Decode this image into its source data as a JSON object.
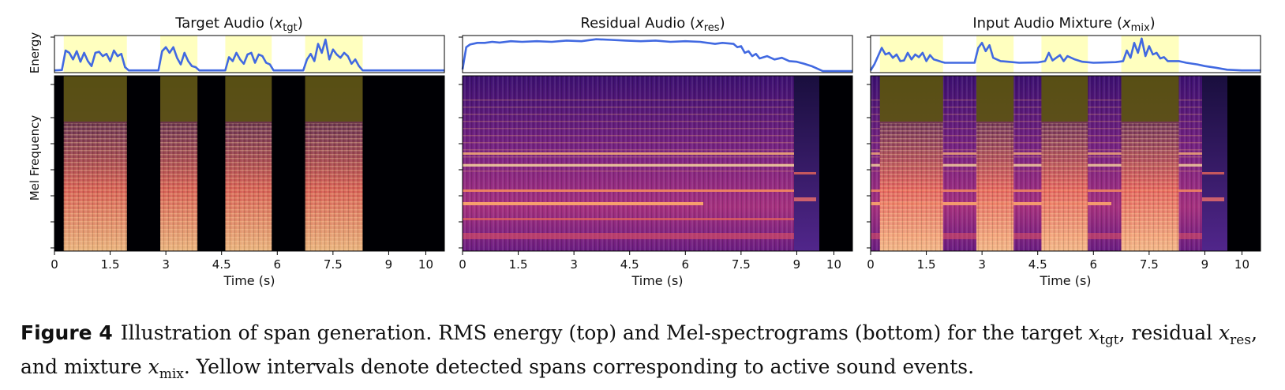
{
  "chart_data": [
    {
      "type": "spectrogram",
      "title_main": "Target Audio (",
      "title_var": "x",
      "title_sub": "tgt",
      "title_close": ")",
      "energy_ylabel": "Energy",
      "spec_ylabel": "Mel Frequency",
      "xlabel": "Time (s)",
      "xticks": [
        0,
        1.5,
        3,
        4.5,
        6,
        7.5,
        9,
        10
      ],
      "xtick_labels": [
        "0",
        "1.5",
        "3",
        "4.5",
        "6",
        "7.5",
        "9",
        "10"
      ],
      "xlim": [
        0,
        10.5
      ],
      "spans": [
        [
          0.25,
          1.95
        ],
        [
          2.85,
          3.85
        ],
        [
          4.6,
          5.85
        ],
        [
          6.75,
          8.3
        ]
      ],
      "energy": [
        [
          0.0,
          0.02
        ],
        [
          0.2,
          0.03
        ],
        [
          0.3,
          0.62
        ],
        [
          0.4,
          0.55
        ],
        [
          0.5,
          0.35
        ],
        [
          0.6,
          0.6
        ],
        [
          0.7,
          0.28
        ],
        [
          0.8,
          0.55
        ],
        [
          0.9,
          0.3
        ],
        [
          1.0,
          0.15
        ],
        [
          1.1,
          0.55
        ],
        [
          1.2,
          0.58
        ],
        [
          1.3,
          0.45
        ],
        [
          1.4,
          0.52
        ],
        [
          1.5,
          0.3
        ],
        [
          1.6,
          0.62
        ],
        [
          1.7,
          0.45
        ],
        [
          1.8,
          0.52
        ],
        [
          1.9,
          0.12
        ],
        [
          2.0,
          0.02
        ],
        [
          2.8,
          0.02
        ],
        [
          2.9,
          0.6
        ],
        [
          3.0,
          0.72
        ],
        [
          3.1,
          0.55
        ],
        [
          3.2,
          0.72
        ],
        [
          3.3,
          0.4
        ],
        [
          3.4,
          0.2
        ],
        [
          3.5,
          0.55
        ],
        [
          3.6,
          0.3
        ],
        [
          3.7,
          0.15
        ],
        [
          3.8,
          0.12
        ],
        [
          3.9,
          0.02
        ],
        [
          4.6,
          0.02
        ],
        [
          4.7,
          0.42
        ],
        [
          4.8,
          0.3
        ],
        [
          4.9,
          0.55
        ],
        [
          5.0,
          0.35
        ],
        [
          5.1,
          0.22
        ],
        [
          5.2,
          0.5
        ],
        [
          5.3,
          0.55
        ],
        [
          5.4,
          0.25
        ],
        [
          5.5,
          0.5
        ],
        [
          5.6,
          0.45
        ],
        [
          5.7,
          0.25
        ],
        [
          5.8,
          0.2
        ],
        [
          5.9,
          0.02
        ],
        [
          6.7,
          0.02
        ],
        [
          6.8,
          0.35
        ],
        [
          6.9,
          0.52
        ],
        [
          7.0,
          0.3
        ],
        [
          7.1,
          0.82
        ],
        [
          7.2,
          0.55
        ],
        [
          7.3,
          0.95
        ],
        [
          7.4,
          0.35
        ],
        [
          7.5,
          0.65
        ],
        [
          7.6,
          0.5
        ],
        [
          7.7,
          0.4
        ],
        [
          7.8,
          0.55
        ],
        [
          7.9,
          0.45
        ],
        [
          8.0,
          0.22
        ],
        [
          8.1,
          0.35
        ],
        [
          8.2,
          0.15
        ],
        [
          8.3,
          0.02
        ],
        [
          10.5,
          0.02
        ]
      ]
    },
    {
      "type": "spectrogram",
      "title_main": "Residual Audio (",
      "title_var": "x",
      "title_sub": "res",
      "title_close": ")",
      "xlabel": "Time (s)",
      "xticks": [
        0,
        1.5,
        3,
        4.5,
        6,
        7.5,
        9,
        10
      ],
      "xtick_labels": [
        "0",
        "1.5",
        "3",
        "4.5",
        "6",
        "7.5",
        "9",
        "10"
      ],
      "xlim": [
        0,
        10.5
      ],
      "spans": [],
      "energy": [
        [
          0.0,
          0.05
        ],
        [
          0.1,
          0.72
        ],
        [
          0.2,
          0.8
        ],
        [
          0.4,
          0.85
        ],
        [
          0.6,
          0.85
        ],
        [
          0.8,
          0.88
        ],
        [
          1.0,
          0.86
        ],
        [
          1.3,
          0.9
        ],
        [
          1.6,
          0.88
        ],
        [
          2.0,
          0.9
        ],
        [
          2.4,
          0.88
        ],
        [
          2.8,
          0.92
        ],
        [
          3.2,
          0.9
        ],
        [
          3.6,
          0.96
        ],
        [
          4.0,
          0.94
        ],
        [
          4.4,
          0.92
        ],
        [
          4.8,
          0.9
        ],
        [
          5.2,
          0.92
        ],
        [
          5.6,
          0.88
        ],
        [
          6.0,
          0.9
        ],
        [
          6.4,
          0.88
        ],
        [
          6.8,
          0.82
        ],
        [
          7.0,
          0.85
        ],
        [
          7.3,
          0.82
        ],
        [
          7.4,
          0.72
        ],
        [
          7.5,
          0.75
        ],
        [
          7.6,
          0.55
        ],
        [
          7.7,
          0.6
        ],
        [
          7.8,
          0.45
        ],
        [
          7.9,
          0.52
        ],
        [
          8.0,
          0.38
        ],
        [
          8.2,
          0.45
        ],
        [
          8.4,
          0.35
        ],
        [
          8.6,
          0.4
        ],
        [
          8.8,
          0.3
        ],
        [
          9.0,
          0.28
        ],
        [
          9.2,
          0.22
        ],
        [
          9.4,
          0.15
        ],
        [
          9.6,
          0.05
        ],
        [
          9.7,
          0.0
        ],
        [
          10.5,
          0.0
        ]
      ]
    },
    {
      "type": "spectrogram",
      "title_main": "Input Audio Mixture (",
      "title_var": "x",
      "title_sub": "mix",
      "title_close": ")",
      "xlabel": "Time (s)",
      "xticks": [
        0,
        1.5,
        3,
        4.5,
        6,
        7.5,
        9,
        10
      ],
      "xtick_labels": [
        "0",
        "1.5",
        "3",
        "4.5",
        "6",
        "7.5",
        "9",
        "10"
      ],
      "xlim": [
        0,
        10.5
      ],
      "spans": [
        [
          0.25,
          1.95
        ],
        [
          2.85,
          3.85
        ],
        [
          4.6,
          5.85
        ],
        [
          6.75,
          8.3
        ]
      ],
      "energy": [
        [
          0.0,
          0.02
        ],
        [
          0.1,
          0.2
        ],
        [
          0.3,
          0.7
        ],
        [
          0.4,
          0.5
        ],
        [
          0.5,
          0.55
        ],
        [
          0.6,
          0.4
        ],
        [
          0.7,
          0.5
        ],
        [
          0.8,
          0.3
        ],
        [
          0.9,
          0.32
        ],
        [
          1.0,
          0.55
        ],
        [
          1.1,
          0.35
        ],
        [
          1.2,
          0.5
        ],
        [
          1.3,
          0.42
        ],
        [
          1.4,
          0.55
        ],
        [
          1.5,
          0.3
        ],
        [
          1.6,
          0.48
        ],
        [
          1.7,
          0.35
        ],
        [
          1.8,
          0.32
        ],
        [
          1.9,
          0.28
        ],
        [
          2.0,
          0.25
        ],
        [
          2.5,
          0.25
        ],
        [
          2.8,
          0.25
        ],
        [
          2.9,
          0.7
        ],
        [
          3.0,
          0.85
        ],
        [
          3.1,
          0.6
        ],
        [
          3.2,
          0.78
        ],
        [
          3.3,
          0.4
        ],
        [
          3.5,
          0.3
        ],
        [
          3.7,
          0.28
        ],
        [
          4.0,
          0.25
        ],
        [
          4.5,
          0.26
        ],
        [
          4.7,
          0.3
        ],
        [
          4.8,
          0.55
        ],
        [
          4.9,
          0.32
        ],
        [
          5.1,
          0.48
        ],
        [
          5.2,
          0.3
        ],
        [
          5.3,
          0.45
        ],
        [
          5.5,
          0.35
        ],
        [
          5.7,
          0.28
        ],
        [
          6.0,
          0.25
        ],
        [
          6.6,
          0.27
        ],
        [
          6.8,
          0.3
        ],
        [
          6.9,
          0.62
        ],
        [
          7.0,
          0.4
        ],
        [
          7.1,
          0.85
        ],
        [
          7.2,
          0.55
        ],
        [
          7.3,
          0.98
        ],
        [
          7.4,
          0.45
        ],
        [
          7.5,
          0.75
        ],
        [
          7.6,
          0.5
        ],
        [
          7.7,
          0.55
        ],
        [
          7.8,
          0.38
        ],
        [
          7.9,
          0.42
        ],
        [
          8.0,
          0.3
        ],
        [
          8.3,
          0.3
        ],
        [
          8.5,
          0.25
        ],
        [
          8.8,
          0.2
        ],
        [
          9.0,
          0.15
        ],
        [
          9.3,
          0.1
        ],
        [
          9.6,
          0.04
        ],
        [
          10.0,
          0.02
        ],
        [
          10.5,
          0.02
        ]
      ]
    }
  ],
  "caption": {
    "label": "Figure 4",
    "text_1": "Illustration of span generation. RMS energy (top) and Mel-spectrograms (bottom) for the target ",
    "var_tgt": "x",
    "sub_tgt": "tgt",
    "text_2": ", residual ",
    "var_res": "x",
    "sub_res": "res",
    "text_3": ", and mixture ",
    "var_mix": "x",
    "sub_mix": "mix",
    "text_4": ". Yellow intervals denote detected spans corresponding to active sound events."
  },
  "colors": {
    "energy_line": "#4169e1",
    "span": "#ffffb4",
    "spec_bg": "#000004"
  }
}
